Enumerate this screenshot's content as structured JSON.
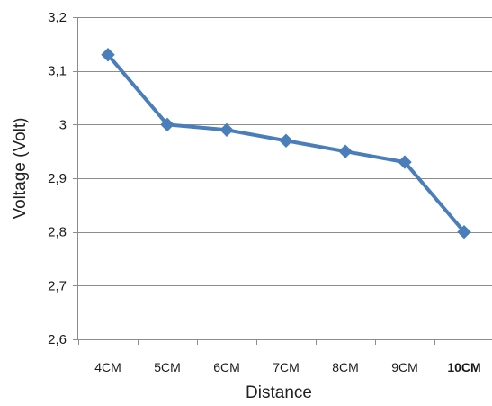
{
  "chart_data": {
    "type": "line",
    "categories": [
      "4CM",
      "5CM",
      "6CM",
      "7CM",
      "8CM",
      "9CM",
      "10CM"
    ],
    "emphasized_category": "10CM",
    "series": [
      {
        "values": [
          3.13,
          3.0,
          2.99,
          2.97,
          2.95,
          2.93,
          2.8
        ],
        "color": "#4a7ebb",
        "marker": "diamond"
      }
    ],
    "xlabel": "Distance",
    "ylabel": "Voltage (Volt)",
    "ylim": [
      2.6,
      3.2
    ],
    "yticks": [
      {
        "value": 2.6,
        "label": "2,6"
      },
      {
        "value": 2.7,
        "label": "2,7"
      },
      {
        "value": 2.8,
        "label": "2,8"
      },
      {
        "value": 2.9,
        "label": "2,9"
      },
      {
        "value": 3.0,
        "label": "3"
      },
      {
        "value": 3.1,
        "label": "3,1"
      },
      {
        "value": 3.2,
        "label": "3,2"
      }
    ],
    "grid": "horizontal",
    "legend": "none"
  }
}
